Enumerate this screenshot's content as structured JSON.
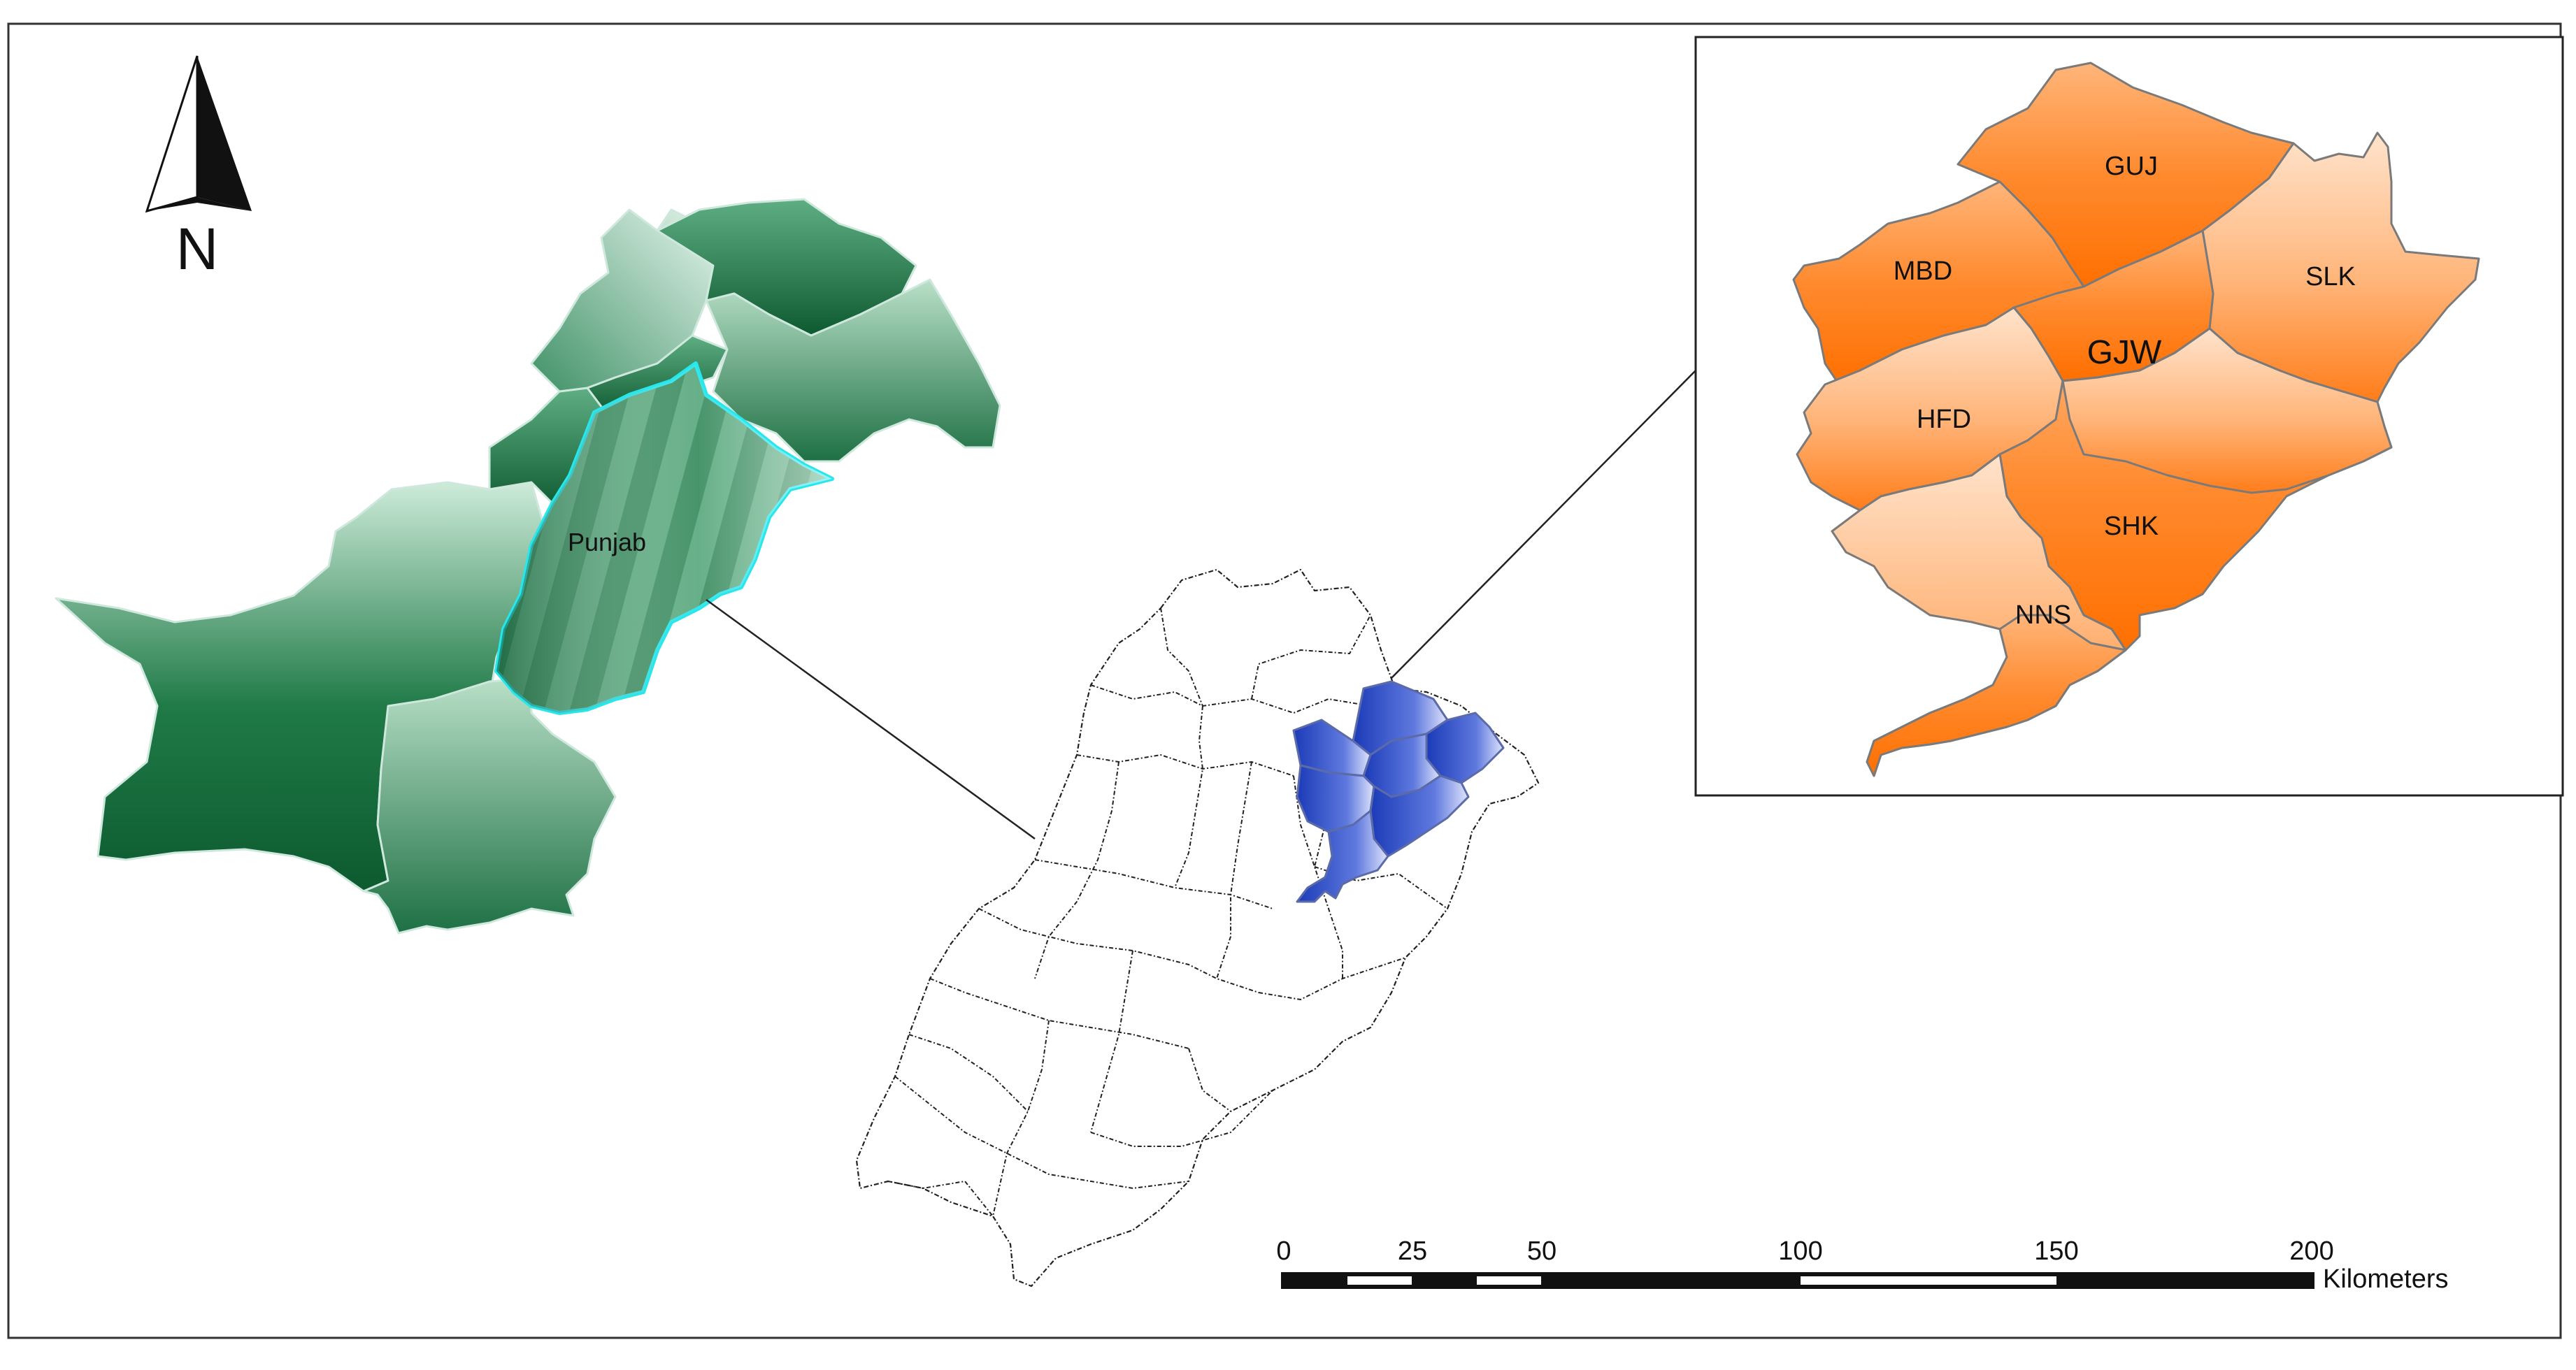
{
  "north_arrow": {
    "letter": "N"
  },
  "province_label": "Punjab",
  "inset_districts": {
    "guj": "GUJ",
    "mbd": "MBD",
    "slk": "SLK",
    "gjw": "GJW",
    "hfd": "HFD",
    "shk": "SHK",
    "nns": "NNS"
  },
  "scale_bar": {
    "ticks": [
      "0",
      "25",
      "50",
      "100",
      "150",
      "200"
    ],
    "unit": "Kilometers"
  },
  "colors": {
    "pakistan_fill": "#1f7a4a",
    "punjab_outline": "#27e6ec",
    "study_area_fill": "#2e4fc4",
    "inset_fill": "#ff7a14"
  }
}
